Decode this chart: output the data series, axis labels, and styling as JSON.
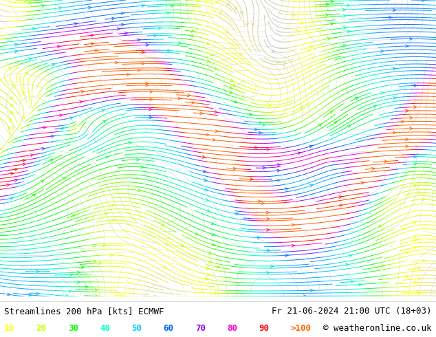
{
  "title_left": "Streamlines 200 hPa [kts] ECMWF",
  "title_right": "Fr 21-06-2024 21:00 UTC (18+03)",
  "copyright": "© weatheronline.co.uk",
  "legend_values": [
    "10",
    "20",
    "30",
    "40",
    "50",
    "60",
    "70",
    "80",
    "90",
    ">100"
  ],
  "legend_colors": [
    "#ffff00",
    "#c8ff00",
    "#00ff00",
    "#00ffc8",
    "#00c8ff",
    "#0064ff",
    "#9600ff",
    "#ff00c8",
    "#ff0000",
    "#ff6400"
  ],
  "bg_color": "#ffffff",
  "colormap_colors": [
    "#c8c8c8",
    "#ffff00",
    "#c8ff00",
    "#00ff00",
    "#00ffc8",
    "#00c8ff",
    "#0064ff",
    "#9600ff",
    "#ff00c8",
    "#ff0000",
    "#ff6400"
  ],
  "figsize": [
    6.34,
    4.9
  ],
  "dpi": 100,
  "seed": 42
}
